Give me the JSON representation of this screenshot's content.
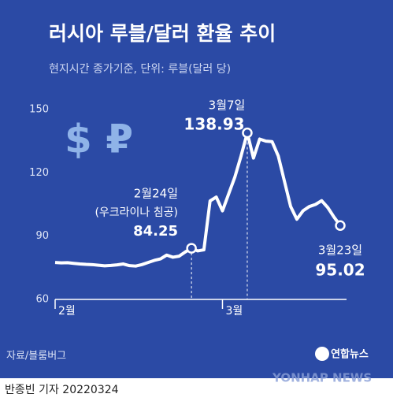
{
  "chart_data": {
    "type": "line",
    "title": "러시아 루블/달러 환율 추이",
    "subtitle": "현지시간 종가기준, 단위: 루블(달러 당)",
    "icons": "$ ₽",
    "categories": [
      "2월",
      null,
      null,
      null,
      null,
      null,
      null,
      null,
      null,
      null,
      null,
      null,
      null,
      null,
      null,
      null,
      null,
      null,
      null,
      null,
      null,
      null,
      null,
      null,
      null,
      null,
      null,
      "3월",
      null,
      null,
      null,
      null,
      null,
      null,
      null,
      null,
      null,
      null,
      null,
      null,
      null,
      null,
      null,
      null,
      null,
      null,
      null
    ],
    "series": [
      {
        "name": "루블/달러",
        "color": "#ffffff",
        "values": [
          77.5,
          77.3,
          77.4,
          77.1,
          76.8,
          76.6,
          76.5,
          76.2,
          75.9,
          76.1,
          76.4,
          76.8,
          76.0,
          75.8,
          76.5,
          77.5,
          78.5,
          79.2,
          81.0,
          80.0,
          80.5,
          82.5,
          84.25,
          83.0,
          83.5,
          106.7,
          108.5,
          102.0,
          110.0,
          118.0,
          128.0,
          138.93,
          127.0,
          136.0,
          135.0,
          134.8,
          128.0,
          116.0,
          104.0,
          98.0,
          102.0,
          104.0,
          105.0,
          106.8,
          103.5,
          99.0,
          95.02
        ]
      }
    ],
    "ylim": [
      60,
      150
    ],
    "yticks": [
      60,
      90,
      120,
      150
    ],
    "grid": false,
    "annotations": [
      {
        "text": "2월24일",
        "note": "(우크라이나 침공)"
      },
      {
        "text": "3월7일"
      },
      {
        "text": "3월23일"
      }
    ],
    "source": "자료/블룸버그",
    "logo": "연합뉴스",
    "watermark": "YONHAP NEWS",
    "byline": "반종빈 기자 20220324"
  }
}
